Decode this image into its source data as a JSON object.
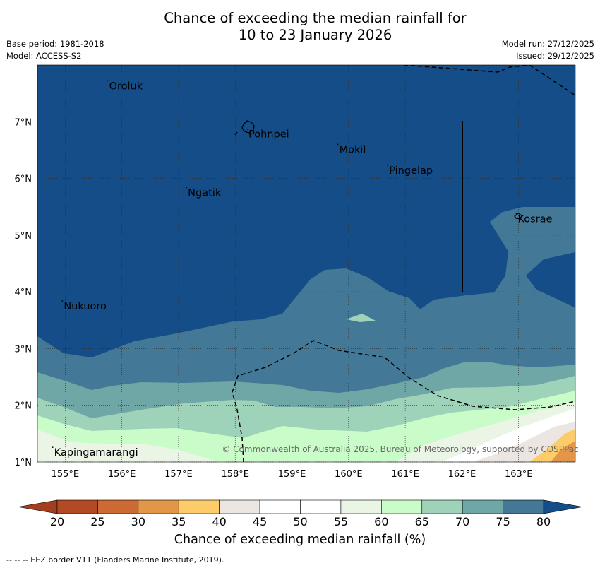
{
  "title": {
    "line1": "Chance of exceeding the median rainfall for",
    "line2": "10 to 23 January 2026"
  },
  "meta": {
    "base_period": "Base period: 1981-2018",
    "model": "Model: ACCESS-S2",
    "model_run": "Model run: 27/12/2025",
    "issued": "Issued: 29/12/2025"
  },
  "axes": {
    "lon_labels": [
      "155°E",
      "156°E",
      "157°E",
      "158°E",
      "159°E",
      "160°E",
      "161°E",
      "162°E",
      "163°E"
    ],
    "lat_labels": [
      "1°N",
      "2°N",
      "3°N",
      "4°N",
      "5°N",
      "6°N",
      "7°N"
    ]
  },
  "places": [
    {
      "name": "Oroluk",
      "lon": 155.75,
      "lat": 7.72
    },
    {
      "name": "Pohnpei",
      "lon": 158.21,
      "lat": 6.87
    },
    {
      "name": "Mokil",
      "lon": 159.81,
      "lat": 6.6
    },
    {
      "name": "Pingelap",
      "lon": 160.69,
      "lat": 6.23
    },
    {
      "name": "Ngatik",
      "lon": 157.14,
      "lat": 5.84
    },
    {
      "name": "Kosrae",
      "lon": 162.96,
      "lat": 5.38
    },
    {
      "name": "Nukuoro",
      "lon": 154.95,
      "lat": 3.84
    },
    {
      "name": "Kapingamarangi",
      "lon": 154.78,
      "lat": 1.26
    }
  ],
  "copyright": "© Commonwealth of Australia 2025, Bureau of Meteorology, supported by COSPPac",
  "colorbar": {
    "title": "Chance of exceeding median rainfall (%)",
    "ticks": [
      "20",
      "25",
      "30",
      "35",
      "40",
      "45",
      "50",
      "55",
      "60",
      "65",
      "70",
      "75",
      "80"
    ],
    "colors": [
      "#b34a25",
      "#cc6a33",
      "#e39648",
      "#fccc6b",
      "#ebe6e2",
      "#ffffff",
      "#ffffff",
      "#ebf5e6",
      "#c9fcc9",
      "#9ed2b9",
      "#6fa6a6",
      "#437896"
    ],
    "under_color": "#a13f20",
    "over_color": "#144d87"
  },
  "footer": "--  --  -- EEZ border V11 (Flanders Marine Institute, 2019)."
}
